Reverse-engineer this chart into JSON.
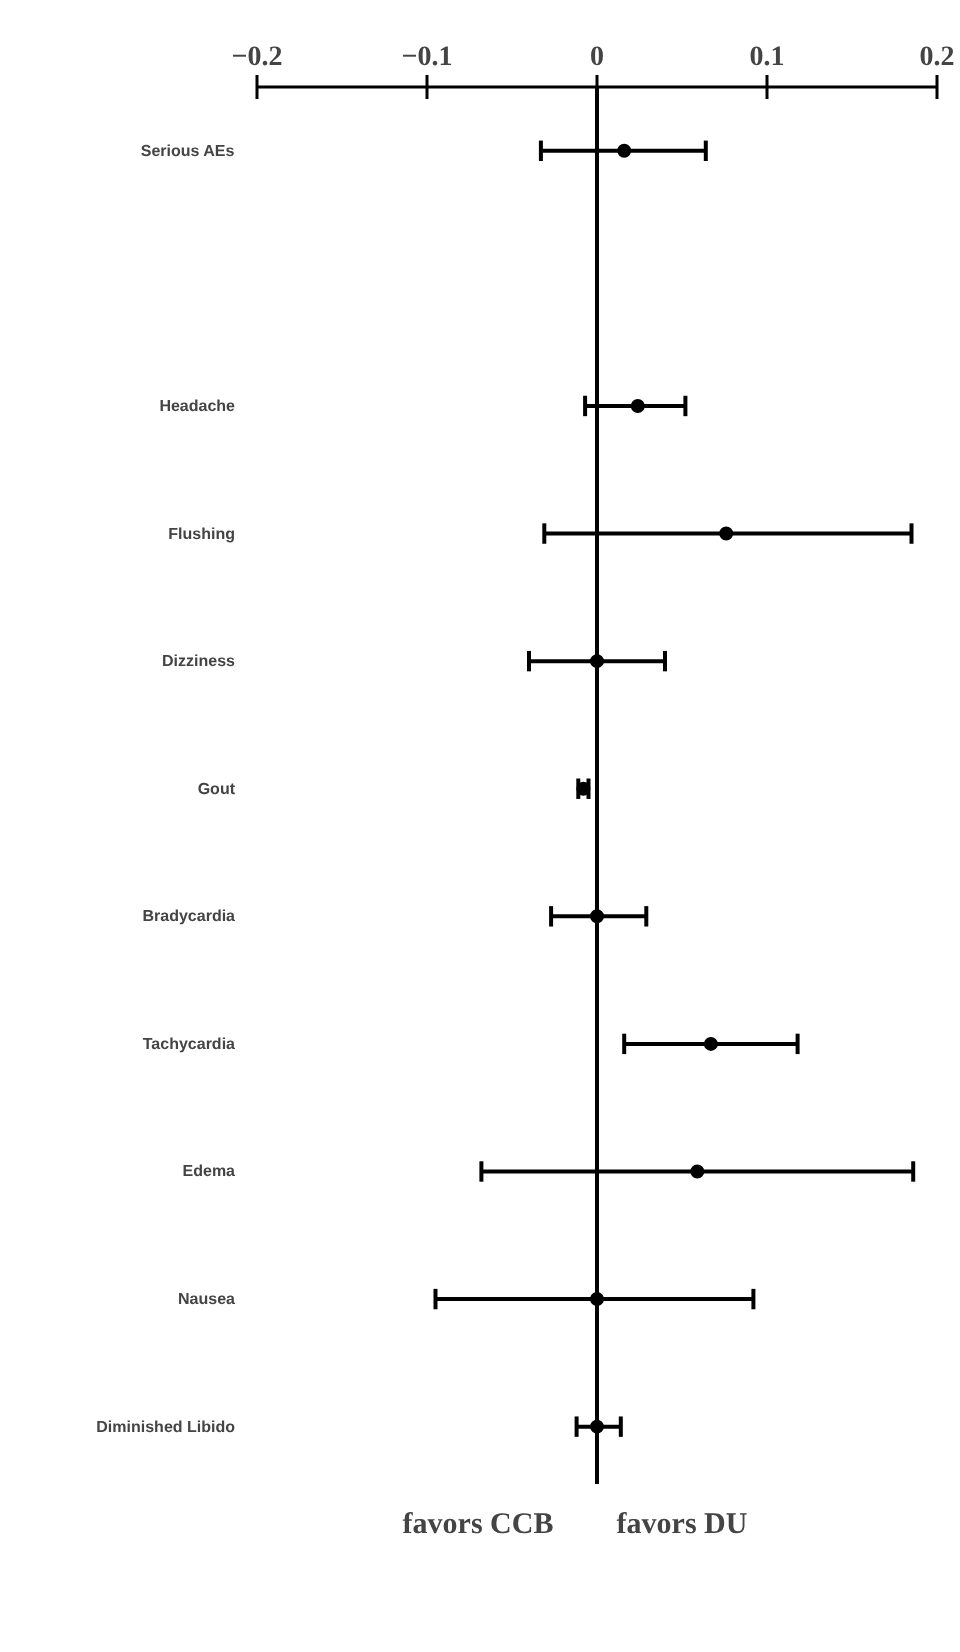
{
  "chart_data": {
    "type": "scatter",
    "orientation": "horizontal",
    "categories": [
      "Serious AEs",
      null,
      "Headache",
      "Flushing",
      "Dizziness",
      "Gout",
      "Bradycardia",
      "Tachycardia",
      "Edema",
      "Nausea",
      "Diminished Libido"
    ],
    "values": [
      0.016,
      null,
      0.024,
      0.076,
      0,
      -0.008,
      0,
      0.067,
      0.059,
      0,
      0
    ],
    "errors": [
      [
        -0.033,
        0.064
      ],
      null,
      [
        -0.007,
        0.052
      ],
      [
        -0.031,
        0.185
      ],
      [
        -0.04,
        0.04
      ],
      [
        -0.011,
        -0.005
      ],
      [
        -0.027,
        0.029
      ],
      [
        0.016,
        0.118
      ],
      [
        -0.068,
        0.186
      ],
      [
        -0.095,
        0.092
      ],
      [
        -0.012,
        0.014
      ]
    ],
    "color": "#000000",
    "marker": "circle",
    "xlim": [
      -0.2,
      0.2
    ],
    "xticks": [
      -0.2,
      -0.1,
      0,
      0.1,
      0.2
    ],
    "grid": false,
    "ref_lines": [
      {
        "axis": "x",
        "value": 0
      }
    ],
    "annotations": [
      "favors CCB",
      "favors DU"
    ]
  }
}
